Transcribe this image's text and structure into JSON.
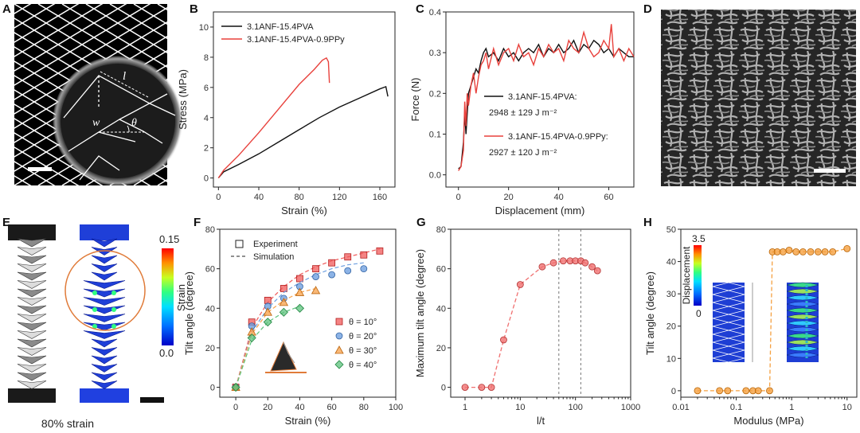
{
  "panel_labels": [
    "A",
    "B",
    "C",
    "D",
    "E",
    "F",
    "G",
    "H"
  ],
  "panel_a": {
    "labels": {
      "l": "l",
      "w": "w",
      "theta": "θ"
    }
  },
  "panel_e": {
    "caption": "80% strain",
    "colorbar": {
      "title": "Strain",
      "max": "0.15",
      "min": "0.0"
    }
  },
  "panel_h_inset": {
    "title": "Displacement",
    "max": "3.5",
    "min": "0"
  },
  "chart_data": [
    {
      "id": "B",
      "type": "line",
      "xlabel": "Strain (%)",
      "ylabel": "Stress (MPa)",
      "xlim": [
        -5,
        175
      ],
      "ylim": [
        -0.6,
        11
      ],
      "xticks": [
        0,
        40,
        80,
        120,
        160
      ],
      "yticks": [
        0,
        2,
        4,
        6,
        8,
        10
      ],
      "series": [
        {
          "name": "3.1ANF-15.4PVA",
          "color": "#111111",
          "x": [
            0,
            5,
            20,
            40,
            60,
            80,
            100,
            120,
            140,
            160,
            166,
            168
          ],
          "y": [
            0,
            0.4,
            0.9,
            1.6,
            2.4,
            3.2,
            4.0,
            4.7,
            5.3,
            5.9,
            6.05,
            5.4
          ]
        },
        {
          "name": "3.1ANF-15.4PVA-0.9PPy",
          "color": "#e8413c",
          "x": [
            0,
            5,
            20,
            40,
            60,
            80,
            95,
            103,
            107,
            109,
            110
          ],
          "y": [
            0,
            0.5,
            1.5,
            3.0,
            4.6,
            6.2,
            7.2,
            7.8,
            7.95,
            7.7,
            6.3
          ]
        }
      ]
    },
    {
      "id": "C",
      "type": "line",
      "xlabel": "Displacement (mm)",
      "ylabel": "Force (N)",
      "xlim": [
        -5,
        70
      ],
      "ylim": [
        -0.03,
        0.4
      ],
      "xticks": [
        0,
        20,
        40,
        60
      ],
      "yticks": [
        0.0,
        0.1,
        0.2,
        0.3,
        0.4
      ],
      "ytick_labels": [
        "0.0",
        "0.1",
        "0.2",
        "0.3",
        "0.4"
      ],
      "annotations": [
        {
          "series": 0,
          "line1": "3.1ANF-15.4PVA:",
          "line2": "2948 ± 129 J m⁻²"
        },
        {
          "series": 1,
          "line1": "3.1ANF-15.4PVA-0.9PPy:",
          "line2": "2927 ± 120 J m⁻²"
        }
      ],
      "series": [
        {
          "name": "3.1ANF-15.4PVA",
          "color": "#111111",
          "x": [
            0,
            1,
            2,
            2.5,
            3,
            4,
            5,
            6,
            7,
            8,
            9,
            10,
            11,
            12,
            14,
            16,
            18,
            20,
            22,
            24,
            26,
            28,
            30,
            32,
            34,
            36,
            38,
            40,
            42,
            44,
            46,
            48,
            50,
            52,
            54,
            56,
            58,
            60,
            62,
            64,
            66,
            68,
            70
          ],
          "y": [
            0.015,
            0.02,
            0.08,
            0.15,
            0.1,
            0.2,
            0.22,
            0.24,
            0.26,
            0.25,
            0.28,
            0.3,
            0.31,
            0.29,
            0.3,
            0.28,
            0.31,
            0.29,
            0.3,
            0.28,
            0.3,
            0.31,
            0.3,
            0.32,
            0.29,
            0.31,
            0.3,
            0.32,
            0.3,
            0.31,
            0.33,
            0.3,
            0.32,
            0.31,
            0.33,
            0.32,
            0.3,
            0.31,
            0.29,
            0.31,
            0.3,
            0.29,
            0.29
          ]
        },
        {
          "name": "3.1ANF-15.4PVA-0.9PPy",
          "color": "#e8413c",
          "x": [
            0,
            1,
            2,
            2.5,
            3,
            3.5,
            4,
            5,
            6,
            7,
            8,
            9,
            10,
            11,
            12,
            14,
            16,
            18,
            20,
            22,
            24,
            26,
            28,
            30,
            32,
            34,
            36,
            38,
            40,
            42,
            44,
            46,
            48,
            50,
            52,
            54,
            56,
            58,
            60,
            61,
            62,
            64,
            66,
            68,
            70
          ],
          "y": [
            0.01,
            0.02,
            0.06,
            0.18,
            0.12,
            0.2,
            0.17,
            0.22,
            0.25,
            0.2,
            0.24,
            0.27,
            0.28,
            0.3,
            0.26,
            0.31,
            0.27,
            0.3,
            0.31,
            0.28,
            0.32,
            0.29,
            0.3,
            0.27,
            0.31,
            0.29,
            0.32,
            0.3,
            0.31,
            0.28,
            0.33,
            0.31,
            0.3,
            0.35,
            0.31,
            0.29,
            0.3,
            0.33,
            0.31,
            0.37,
            0.29,
            0.31,
            0.28,
            0.31,
            0.29
          ]
        }
      ]
    },
    {
      "id": "F",
      "type": "scatter",
      "xlabel": "Strain (%)",
      "ylabel": "Tilt angle (degree)",
      "xlim": [
        -10,
        100
      ],
      "ylim": [
        -5,
        80
      ],
      "xticks": [
        0,
        20,
        40,
        60,
        80,
        100
      ],
      "yticks": [
        0,
        20,
        40,
        60,
        80
      ],
      "legend_style": {
        "experiment": "Experiment",
        "simulation": "Simulation"
      },
      "series": [
        {
          "name": "θ = 10°",
          "color": "#f05a5a",
          "marker": "square",
          "x": [
            0,
            10,
            20,
            30,
            40,
            50,
            60,
            70,
            80,
            90
          ],
          "y": [
            0,
            33,
            44,
            50,
            55,
            60,
            63,
            66,
            67,
            69
          ],
          "sim_y": [
            0,
            30,
            43,
            51,
            57,
            61,
            64,
            66,
            68,
            70
          ]
        },
        {
          "name": "θ = 20°",
          "color": "#6fa0e0",
          "marker": "circle",
          "x": [
            0,
            10,
            20,
            30,
            40,
            50,
            60,
            70,
            80
          ],
          "y": [
            0,
            31,
            41,
            45,
            51,
            56,
            57,
            59,
            60
          ],
          "sim_y": [
            0,
            28,
            40,
            48,
            53,
            57,
            60,
            62,
            63
          ]
        },
        {
          "name": "θ = 30°",
          "color": "#f7a048",
          "marker": "triangle",
          "x": [
            0,
            10,
            20,
            30,
            40,
            50
          ],
          "y": [
            0,
            28,
            38,
            43,
            48,
            49
          ],
          "sim_y": [
            0,
            27,
            38,
            44,
            48,
            50
          ]
        },
        {
          "name": "θ = 40°",
          "color": "#5cc27c",
          "marker": "diamond",
          "x": [
            0,
            10,
            20,
            30,
            40
          ],
          "y": [
            0,
            25,
            33,
            38,
            40
          ],
          "sim_y": [
            0,
            24,
            33,
            38,
            41
          ]
        }
      ]
    },
    {
      "id": "G",
      "type": "scatter",
      "xlabel": "l/t",
      "ylabel": "Maximum tilt angle (degree)",
      "xscale": "log",
      "xlim": [
        0.55,
        1000
      ],
      "ylim": [
        -5,
        80
      ],
      "xticks": [
        1,
        10,
        100,
        1000
      ],
      "yticks": [
        0,
        20,
        40,
        60,
        80
      ],
      "vlines": [
        50,
        125
      ],
      "series": [
        {
          "name": "max tilt",
          "color": "#f07070",
          "x": [
            1,
            2,
            3,
            5,
            10,
            25,
            40,
            60,
            80,
            100,
            125,
            150,
            200,
            250
          ],
          "y": [
            0,
            0,
            0,
            24,
            52,
            61,
            63,
            64,
            64,
            64,
            64,
            63,
            61,
            59
          ]
        }
      ]
    },
    {
      "id": "H",
      "type": "scatter",
      "xlabel": "Modulus (MPa)",
      "ylabel": "Tilt angle (degree)",
      "xscale": "log",
      "xlim": [
        0.01,
        15
      ],
      "ylim": [
        -2,
        50
      ],
      "xticks": [
        0.01,
        0.1,
        1,
        10
      ],
      "xtick_labels": [
        "0.01",
        "0.1",
        "1",
        "10"
      ],
      "yticks": [
        0,
        10,
        20,
        30,
        40,
        50
      ],
      "series": [
        {
          "name": "tilt",
          "color": "#f5a040",
          "x": [
            0.02,
            0.05,
            0.07,
            0.15,
            0.2,
            0.25,
            0.4,
            0.45,
            0.55,
            0.7,
            0.9,
            1.2,
            1.6,
            2.2,
            3,
            4,
            5.5,
            10
          ],
          "y": [
            0,
            0,
            0,
            0,
            0,
            0,
            0,
            43,
            43,
            43,
            43.5,
            43,
            43,
            43,
            43,
            43,
            43,
            44
          ]
        }
      ]
    }
  ]
}
